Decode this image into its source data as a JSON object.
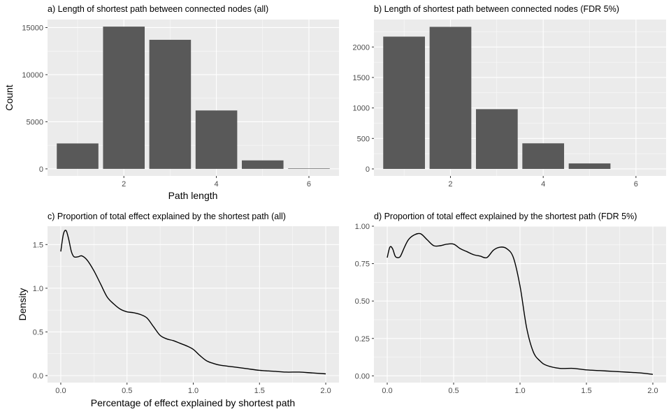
{
  "colors": {
    "panel_bg": "#ebebeb",
    "grid_major": "#ffffff",
    "bar_fill": "#595959",
    "line": "#000000",
    "tick_text": "#4d4d4d"
  },
  "chart_data": [
    {
      "type": "bar",
      "title": "a) Length of shortest path between connected nodes (all)",
      "xlabel": "Path length",
      "ylabel": "Count",
      "categories": [
        1,
        2,
        3,
        4,
        5,
        6
      ],
      "values": [
        2700,
        15100,
        13700,
        6200,
        900,
        50
      ],
      "xlim": [
        0.35,
        6.65
      ],
      "ylim": [
        -750,
        15850
      ],
      "xticks": [
        2,
        4,
        6
      ],
      "yticks": [
        0,
        5000,
        10000,
        15000
      ],
      "grid": true
    },
    {
      "type": "bar",
      "title": "b) Length of shortest path between connected nodes (FDR 5%)",
      "xlabel": "",
      "ylabel": "",
      "categories": [
        1,
        2,
        3,
        4,
        5
      ],
      "values": [
        2170,
        2330,
        980,
        420,
        90
      ],
      "xlim": [
        0.35,
        6.65
      ],
      "ylim": [
        -115,
        2450
      ],
      "xticks": [
        2,
        4,
        6
      ],
      "yticks": [
        0,
        500,
        1000,
        1500,
        2000
      ],
      "grid": true
    },
    {
      "type": "line",
      "title": "c) Proportion of total effect explained by the shortest path (all)",
      "xlabel": "Percentage of effect explained by shortest path",
      "ylabel": "Density",
      "x": [
        0.0,
        0.02,
        0.04,
        0.06,
        0.08,
        0.1,
        0.13,
        0.16,
        0.2,
        0.25,
        0.3,
        0.35,
        0.4,
        0.45,
        0.5,
        0.55,
        0.6,
        0.65,
        0.7,
        0.75,
        0.8,
        0.85,
        0.9,
        0.95,
        1.0,
        1.05,
        1.1,
        1.15,
        1.2,
        1.3,
        1.4,
        1.5,
        1.6,
        1.7,
        1.8,
        1.9,
        2.0
      ],
      "y": [
        1.42,
        1.62,
        1.66,
        1.56,
        1.42,
        1.36,
        1.36,
        1.37,
        1.32,
        1.2,
        1.05,
        0.9,
        0.82,
        0.76,
        0.73,
        0.72,
        0.7,
        0.66,
        0.56,
        0.46,
        0.42,
        0.4,
        0.37,
        0.34,
        0.3,
        0.23,
        0.17,
        0.14,
        0.12,
        0.1,
        0.08,
        0.06,
        0.05,
        0.04,
        0.04,
        0.03,
        0.02
      ],
      "xlim": [
        -0.1,
        2.1
      ],
      "ylim": [
        -0.08,
        1.71
      ],
      "xticks": [
        0.0,
        0.5,
        1.0,
        1.5,
        2.0
      ],
      "xtick_labels": [
        "0.0",
        "0.5",
        "1.0",
        "1.5",
        "2.0"
      ],
      "yticks": [
        0.0,
        0.5,
        1.0,
        1.5
      ],
      "ytick_labels": [
        "0.0",
        "0.5",
        "1.0",
        "1.5"
      ],
      "grid": true
    },
    {
      "type": "line",
      "title": "d) Proportion of total effect explained by the shortest path (FDR 5%)",
      "xlabel": "",
      "ylabel": "",
      "x": [
        0.0,
        0.02,
        0.04,
        0.06,
        0.08,
        0.1,
        0.13,
        0.16,
        0.2,
        0.25,
        0.3,
        0.35,
        0.4,
        0.45,
        0.5,
        0.55,
        0.6,
        0.65,
        0.7,
        0.75,
        0.8,
        0.85,
        0.9,
        0.95,
        1.0,
        1.05,
        1.1,
        1.15,
        1.2,
        1.3,
        1.4,
        1.5,
        1.6,
        1.7,
        1.8,
        1.9,
        2.0
      ],
      "y": [
        0.79,
        0.86,
        0.85,
        0.8,
        0.79,
        0.8,
        0.86,
        0.91,
        0.94,
        0.95,
        0.91,
        0.87,
        0.87,
        0.88,
        0.88,
        0.85,
        0.83,
        0.81,
        0.8,
        0.79,
        0.84,
        0.86,
        0.85,
        0.79,
        0.6,
        0.32,
        0.16,
        0.1,
        0.07,
        0.05,
        0.05,
        0.04,
        0.035,
        0.03,
        0.025,
        0.02,
        0.01
      ],
      "xlim": [
        -0.1,
        2.1
      ],
      "ylim": [
        -0.045,
        1.0
      ],
      "xticks": [
        0.0,
        0.5,
        1.0,
        1.5,
        2.0
      ],
      "xtick_labels": [
        "0.0",
        "0.5",
        "1.0",
        "1.5",
        "2.0"
      ],
      "yticks": [
        0.0,
        0.25,
        0.5,
        0.75,
        1.0
      ],
      "ytick_labels": [
        "0.00",
        "0.25",
        "0.50",
        "0.75",
        "1.00"
      ],
      "grid": true
    }
  ]
}
